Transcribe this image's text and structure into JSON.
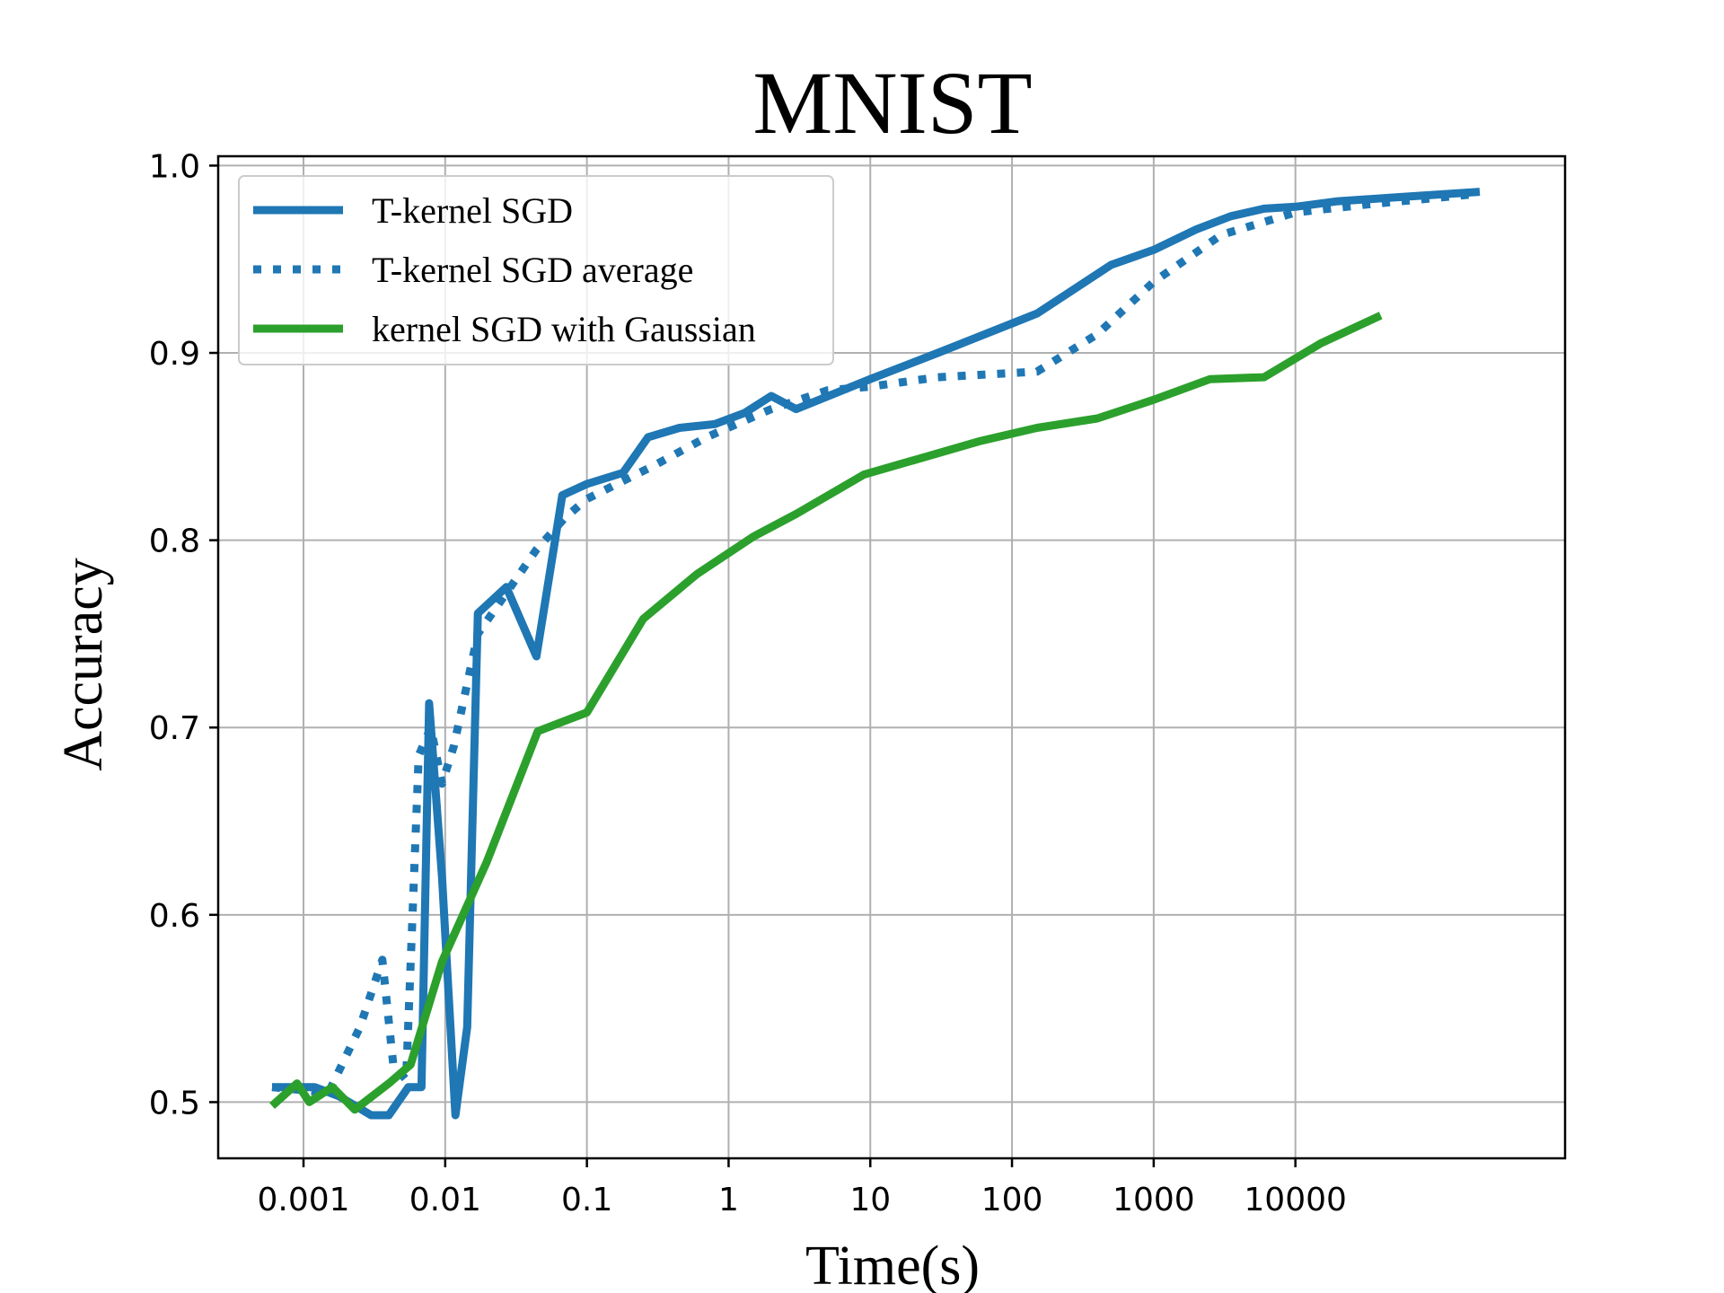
{
  "chart_data": {
    "type": "line",
    "title": "MNIST",
    "xlabel": "Time(s)",
    "ylabel": "Accuracy",
    "xscale": "log",
    "xlim": [
      0.00025,
      800000
    ],
    "ylim": [
      0.47,
      1.005
    ],
    "xticks": [
      {
        "value": 0.001,
        "label": "0.001"
      },
      {
        "value": 0.01,
        "label": "0.01"
      },
      {
        "value": 0.1,
        "label": "0.1"
      },
      {
        "value": 1,
        "label": "1"
      },
      {
        "value": 10,
        "label": "10"
      },
      {
        "value": 100,
        "label": "100"
      },
      {
        "value": 1000,
        "label": "1000"
      },
      {
        "value": 10000,
        "label": "10000"
      }
    ],
    "yticks": [
      {
        "value": 0.5,
        "label": "0.5"
      },
      {
        "value": 0.6,
        "label": "0.6"
      },
      {
        "value": 0.7,
        "label": "0.7"
      },
      {
        "value": 0.8,
        "label": "0.8"
      },
      {
        "value": 0.9,
        "label": "0.9"
      },
      {
        "value": 1.0,
        "label": "1.0"
      }
    ],
    "grid": true,
    "legend_position": "top-left",
    "series": [
      {
        "name": "T-kernel SGD",
        "color": "#1f77b4",
        "style": "solid",
        "points": [
          [
            0.0006,
            0.508
          ],
          [
            0.0012,
            0.508
          ],
          [
            0.0018,
            0.503
          ],
          [
            0.003,
            0.493
          ],
          [
            0.004,
            0.493
          ],
          [
            0.0055,
            0.508
          ],
          [
            0.0068,
            0.508
          ],
          [
            0.0077,
            0.713
          ],
          [
            0.0095,
            0.62
          ],
          [
            0.0118,
            0.493
          ],
          [
            0.0143,
            0.54
          ],
          [
            0.017,
            0.761
          ],
          [
            0.027,
            0.775
          ],
          [
            0.044,
            0.738
          ],
          [
            0.067,
            0.824
          ],
          [
            0.1,
            0.83
          ],
          [
            0.18,
            0.836
          ],
          [
            0.27,
            0.855
          ],
          [
            0.45,
            0.86
          ],
          [
            0.8,
            0.862
          ],
          [
            1.3,
            0.868
          ],
          [
            2.0,
            0.877
          ],
          [
            3.0,
            0.87
          ],
          [
            10,
            0.886
          ],
          [
            30,
            0.9
          ],
          [
            150,
            0.921
          ],
          [
            500,
            0.947
          ],
          [
            1000,
            0.955
          ],
          [
            2000,
            0.966
          ],
          [
            3500,
            0.973
          ],
          [
            6000,
            0.977
          ],
          [
            10000,
            0.978
          ],
          [
            20000,
            0.981
          ],
          [
            50000,
            0.983
          ],
          [
            200000,
            0.986
          ]
        ]
      },
      {
        "name": "T-kernel SGD average",
        "color": "#1f77b4",
        "style": "dotted",
        "points": [
          [
            0.0006,
            0.508
          ],
          [
            0.0015,
            0.505
          ],
          [
            0.0025,
            0.54
          ],
          [
            0.0036,
            0.576
          ],
          [
            0.0043,
            0.52
          ],
          [
            0.0053,
            0.512
          ],
          [
            0.0065,
            0.685
          ],
          [
            0.0079,
            0.7
          ],
          [
            0.0095,
            0.67
          ],
          [
            0.0115,
            0.69
          ],
          [
            0.017,
            0.75
          ],
          [
            0.026,
            0.77
          ],
          [
            0.044,
            0.795
          ],
          [
            0.07,
            0.812
          ],
          [
            0.1,
            0.822
          ],
          [
            0.3,
            0.84
          ],
          [
            0.7,
            0.855
          ],
          [
            2,
            0.87
          ],
          [
            5,
            0.88
          ],
          [
            10,
            0.882
          ],
          [
            30,
            0.887
          ],
          [
            150,
            0.89
          ],
          [
            400,
            0.91
          ],
          [
            1000,
            0.938
          ],
          [
            3000,
            0.963
          ],
          [
            10000,
            0.975
          ],
          [
            30000,
            0.979
          ],
          [
            200000,
            0.985
          ]
        ]
      },
      {
        "name": "kernel SGD with Gaussian",
        "color": "#2ca02c",
        "style": "solid",
        "points": [
          [
            0.0006,
            0.498
          ],
          [
            0.0009,
            0.51
          ],
          [
            0.0011,
            0.5
          ],
          [
            0.0016,
            0.508
          ],
          [
            0.0023,
            0.496
          ],
          [
            0.004,
            0.51
          ],
          [
            0.0057,
            0.52
          ],
          [
            0.0095,
            0.575
          ],
          [
            0.0196,
            0.628
          ],
          [
            0.045,
            0.698
          ],
          [
            0.1,
            0.708
          ],
          [
            0.25,
            0.758
          ],
          [
            0.6,
            0.782
          ],
          [
            1.5,
            0.802
          ],
          [
            3,
            0.814
          ],
          [
            9,
            0.835
          ],
          [
            60,
            0.853
          ],
          [
            150,
            0.86
          ],
          [
            400,
            0.865
          ],
          [
            1000,
            0.875
          ],
          [
            2500,
            0.886
          ],
          [
            6000,
            0.887
          ],
          [
            15000,
            0.905
          ],
          [
            40000,
            0.92
          ]
        ]
      }
    ]
  }
}
